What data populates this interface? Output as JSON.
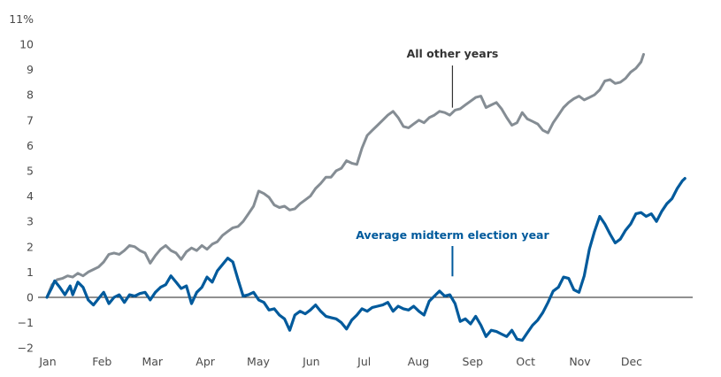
{
  "chart_data": {
    "type": "line",
    "title": "",
    "xlabel": "",
    "ylabel": "",
    "ylim": [
      -2,
      11
    ],
    "xlim": [
      0,
      250
    ],
    "y_ticks": [
      {
        "value": 11,
        "label": "11%"
      },
      {
        "value": 10,
        "label": "10"
      },
      {
        "value": 9,
        "label": "9"
      },
      {
        "value": 8,
        "label": "8"
      },
      {
        "value": 7,
        "label": "7"
      },
      {
        "value": 6,
        "label": "6"
      },
      {
        "value": 5,
        "label": "5"
      },
      {
        "value": 4,
        "label": "4"
      },
      {
        "value": 3,
        "label": "3"
      },
      {
        "value": 2,
        "label": "2"
      },
      {
        "value": 1,
        "label": "1"
      },
      {
        "value": 0,
        "label": "0"
      },
      {
        "value": -1,
        "label": "−1"
      },
      {
        "value": -2,
        "label": "−2"
      }
    ],
    "x_ticks": [
      {
        "value": 0,
        "label": "Jan"
      },
      {
        "value": 21,
        "label": "Feb"
      },
      {
        "value": 40.5,
        "label": "Mar"
      },
      {
        "value": 61,
        "label": "Apr"
      },
      {
        "value": 81.5,
        "label": "May"
      },
      {
        "value": 102,
        "label": "Jun"
      },
      {
        "value": 122.5,
        "label": "Jul"
      },
      {
        "value": 143.5,
        "label": "Aug"
      },
      {
        "value": 164.5,
        "label": "Sep"
      },
      {
        "value": 185,
        "label": "Oct"
      },
      {
        "value": 206,
        "label": "Nov"
      },
      {
        "value": 226,
        "label": "Dec"
      }
    ],
    "zero_line": 0,
    "grid": false,
    "legend": "none",
    "series": [
      {
        "name": "All other years",
        "color": "#858d94",
        "annotation": {
          "label": "All other years",
          "x": 157,
          "y": 7.6
        },
        "points": [
          [
            0,
            0
          ],
          [
            2,
            0.5
          ],
          [
            4,
            0.7
          ],
          [
            6,
            0.75
          ],
          [
            8,
            0.85
          ],
          [
            10,
            0.8
          ],
          [
            12,
            0.95
          ],
          [
            14,
            0.85
          ],
          [
            16,
            1.0
          ],
          [
            18,
            1.1
          ],
          [
            20,
            1.2
          ],
          [
            22,
            1.4
          ],
          [
            24,
            1.7
          ],
          [
            26,
            1.75
          ],
          [
            28,
            1.7
          ],
          [
            30,
            1.85
          ],
          [
            32,
            2.05
          ],
          [
            34,
            2.0
          ],
          [
            36,
            1.85
          ],
          [
            38,
            1.75
          ],
          [
            40,
            1.35
          ],
          [
            42,
            1.65
          ],
          [
            44,
            1.9
          ],
          [
            46,
            2.05
          ],
          [
            48,
            1.85
          ],
          [
            50,
            1.75
          ],
          [
            52,
            1.5
          ],
          [
            54,
            1.8
          ],
          [
            56,
            1.95
          ],
          [
            58,
            1.85
          ],
          [
            60,
            2.05
          ],
          [
            62,
            1.9
          ],
          [
            64,
            2.1
          ],
          [
            66,
            2.2
          ],
          [
            68,
            2.45
          ],
          [
            70,
            2.6
          ],
          [
            72,
            2.75
          ],
          [
            74,
            2.8
          ],
          [
            76,
            3.0
          ],
          [
            78,
            3.3
          ],
          [
            80,
            3.6
          ],
          [
            82,
            4.2
          ],
          [
            84,
            4.1
          ],
          [
            86,
            3.95
          ],
          [
            88,
            3.65
          ],
          [
            90,
            3.55
          ],
          [
            92,
            3.6
          ],
          [
            94,
            3.45
          ],
          [
            96,
            3.5
          ],
          [
            98,
            3.7
          ],
          [
            100,
            3.85
          ],
          [
            102,
            4.0
          ],
          [
            104,
            4.3
          ],
          [
            106,
            4.5
          ],
          [
            108,
            4.75
          ],
          [
            110,
            4.75
          ],
          [
            112,
            5.0
          ],
          [
            114,
            5.1
          ],
          [
            116,
            5.4
          ],
          [
            118,
            5.3
          ],
          [
            120,
            5.25
          ],
          [
            122,
            5.9
          ],
          [
            124,
            6.4
          ],
          [
            126,
            6.6
          ],
          [
            128,
            6.8
          ],
          [
            130,
            7.0
          ],
          [
            132,
            7.2
          ],
          [
            134,
            7.35
          ],
          [
            136,
            7.1
          ],
          [
            138,
            6.75
          ],
          [
            140,
            6.7
          ],
          [
            142,
            6.85
          ],
          [
            144,
            7.0
          ],
          [
            146,
            6.9
          ],
          [
            148,
            7.1
          ],
          [
            150,
            7.2
          ],
          [
            152,
            7.35
          ],
          [
            154,
            7.3
          ],
          [
            156,
            7.2
          ],
          [
            158,
            7.4
          ],
          [
            160,
            7.45
          ],
          [
            162,
            7.6
          ],
          [
            164,
            7.75
          ],
          [
            166,
            7.9
          ],
          [
            168,
            7.95
          ],
          [
            170,
            7.5
          ],
          [
            172,
            7.6
          ],
          [
            174,
            7.7
          ],
          [
            176,
            7.45
          ],
          [
            178,
            7.1
          ],
          [
            180,
            6.8
          ],
          [
            182,
            6.9
          ],
          [
            184,
            7.3
          ],
          [
            186,
            7.05
          ],
          [
            188,
            6.95
          ],
          [
            190,
            6.85
          ],
          [
            192,
            6.6
          ],
          [
            194,
            6.5
          ],
          [
            196,
            6.9
          ],
          [
            198,
            7.2
          ],
          [
            200,
            7.5
          ],
          [
            202,
            7.7
          ],
          [
            204,
            7.85
          ],
          [
            206,
            7.95
          ],
          [
            208,
            7.8
          ],
          [
            210,
            7.9
          ],
          [
            212,
            8.0
          ],
          [
            214,
            8.2
          ],
          [
            216,
            8.55
          ],
          [
            218,
            8.6
          ],
          [
            220,
            8.45
          ],
          [
            222,
            8.5
          ],
          [
            224,
            8.65
          ],
          [
            226,
            8.9
          ],
          [
            228,
            9.05
          ],
          [
            230,
            9.3
          ],
          [
            231,
            9.6
          ]
        ]
      },
      {
        "name": "Average midterm election year",
        "color": "#005a9c",
        "annotation": {
          "label": "Average midterm election year",
          "x": 157,
          "y": 0.9
        },
        "points": [
          [
            0,
            0
          ],
          [
            2,
            0.4
          ],
          [
            3,
            0.65
          ],
          [
            5,
            0.4
          ],
          [
            7,
            0.1
          ],
          [
            9,
            0.45
          ],
          [
            10,
            0.1
          ],
          [
            12,
            0.6
          ],
          [
            14,
            0.4
          ],
          [
            16,
            -0.1
          ],
          [
            18,
            -0.3
          ],
          [
            20,
            -0.05
          ],
          [
            22,
            0.2
          ],
          [
            24,
            -0.25
          ],
          [
            26,
            0.0
          ],
          [
            28,
            0.1
          ],
          [
            30,
            -0.2
          ],
          [
            32,
            0.1
          ],
          [
            34,
            0.05
          ],
          [
            36,
            0.15
          ],
          [
            38,
            0.2
          ],
          [
            40,
            -0.1
          ],
          [
            42,
            0.2
          ],
          [
            44,
            0.4
          ],
          [
            46,
            0.5
          ],
          [
            48,
            0.85
          ],
          [
            50,
            0.6
          ],
          [
            52,
            0.35
          ],
          [
            54,
            0.45
          ],
          [
            56,
            -0.25
          ],
          [
            58,
            0.2
          ],
          [
            60,
            0.4
          ],
          [
            62,
            0.8
          ],
          [
            64,
            0.6
          ],
          [
            66,
            1.05
          ],
          [
            68,
            1.3
          ],
          [
            70,
            1.55
          ],
          [
            72,
            1.4
          ],
          [
            74,
            0.7
          ],
          [
            76,
            0.05
          ],
          [
            78,
            0.1
          ],
          [
            80,
            0.2
          ],
          [
            82,
            -0.1
          ],
          [
            84,
            -0.2
          ],
          [
            86,
            -0.5
          ],
          [
            88,
            -0.45
          ],
          [
            90,
            -0.7
          ],
          [
            92,
            -0.85
          ],
          [
            94,
            -1.3
          ],
          [
            96,
            -0.7
          ],
          [
            98,
            -0.55
          ],
          [
            100,
            -0.65
          ],
          [
            102,
            -0.5
          ],
          [
            104,
            -0.3
          ],
          [
            106,
            -0.55
          ],
          [
            108,
            -0.75
          ],
          [
            110,
            -0.8
          ],
          [
            112,
            -0.85
          ],
          [
            114,
            -1.0
          ],
          [
            116,
            -1.25
          ],
          [
            118,
            -0.9
          ],
          [
            120,
            -0.7
          ],
          [
            122,
            -0.45
          ],
          [
            124,
            -0.55
          ],
          [
            126,
            -0.4
          ],
          [
            128,
            -0.35
          ],
          [
            130,
            -0.3
          ],
          [
            132,
            -0.2
          ],
          [
            134,
            -0.55
          ],
          [
            136,
            -0.35
          ],
          [
            138,
            -0.45
          ],
          [
            140,
            -0.5
          ],
          [
            142,
            -0.35
          ],
          [
            144,
            -0.55
          ],
          [
            146,
            -0.7
          ],
          [
            148,
            -0.15
          ],
          [
            150,
            0.05
          ],
          [
            152,
            0.25
          ],
          [
            154,
            0.05
          ],
          [
            156,
            0.1
          ],
          [
            158,
            -0.25
          ],
          [
            160,
            -0.95
          ],
          [
            162,
            -0.85
          ],
          [
            164,
            -1.05
          ],
          [
            166,
            -0.75
          ],
          [
            168,
            -1.1
          ],
          [
            170,
            -1.55
          ],
          [
            172,
            -1.3
          ],
          [
            174,
            -1.35
          ],
          [
            176,
            -1.45
          ],
          [
            178,
            -1.55
          ],
          [
            180,
            -1.3
          ],
          [
            182,
            -1.65
          ],
          [
            184,
            -1.7
          ],
          [
            186,
            -1.4
          ],
          [
            188,
            -1.1
          ],
          [
            190,
            -0.9
          ],
          [
            192,
            -0.6
          ],
          [
            194,
            -0.2
          ],
          [
            196,
            0.25
          ],
          [
            198,
            0.4
          ],
          [
            200,
            0.8
          ],
          [
            202,
            0.75
          ],
          [
            204,
            0.3
          ],
          [
            206,
            0.2
          ],
          [
            208,
            0.85
          ],
          [
            210,
            1.9
          ],
          [
            212,
            2.6
          ],
          [
            214,
            3.2
          ],
          [
            216,
            2.9
          ],
          [
            218,
            2.5
          ],
          [
            220,
            2.15
          ],
          [
            222,
            2.3
          ],
          [
            224,
            2.65
          ],
          [
            226,
            2.9
          ],
          [
            228,
            3.3
          ],
          [
            230,
            3.35
          ],
          [
            232,
            3.2
          ],
          [
            234,
            3.3
          ],
          [
            236,
            3.0
          ],
          [
            238,
            3.4
          ],
          [
            240,
            3.7
          ],
          [
            242,
            3.9
          ],
          [
            244,
            4.3
          ],
          [
            246,
            4.6
          ],
          [
            247,
            4.7
          ]
        ]
      }
    ]
  }
}
